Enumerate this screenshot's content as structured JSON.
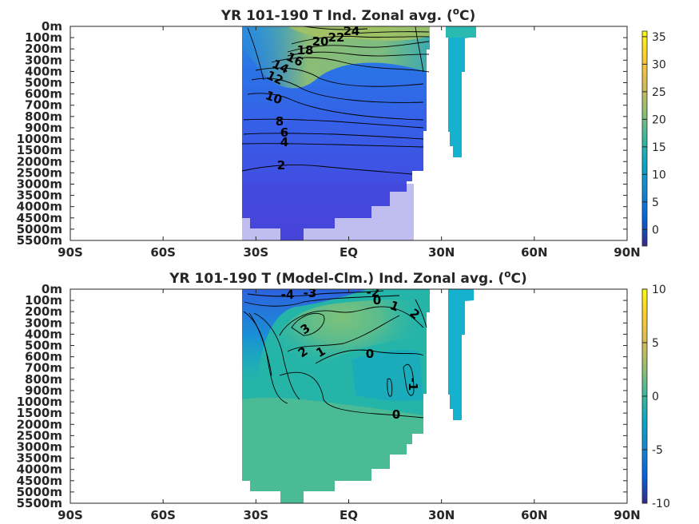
{
  "chart_data": [
    {
      "type": "heatmap",
      "title": "YR 101-190 T Ind. Zonal avg. (",
      "title_sup": "o",
      "title_end": "C)",
      "xlabel": "",
      "ylabel": "",
      "x_ticks": [
        "90S",
        "60S",
        "30S",
        "EQ",
        "30N",
        "60N",
        "90N"
      ],
      "y_ticks": [
        "0m",
        "100m",
        "200m",
        "300m",
        "400m",
        "500m",
        "600m",
        "700m",
        "800m",
        "900m",
        "1000m",
        "1500m",
        "2000m",
        "2500m",
        "3000m",
        "3500m",
        "4000m",
        "4500m",
        "5000m",
        "5500m"
      ],
      "colorbar_ticks": [
        "35",
        "30",
        "25",
        "20",
        "15",
        "10",
        "5",
        "0"
      ],
      "colorbar_range": [
        -3,
        36
      ],
      "contour_labels": [
        "24",
        "22",
        "20",
        "18",
        "16",
        "14",
        "12",
        "10",
        "8",
        "6",
        "4",
        "2"
      ],
      "colormap": "parula"
    },
    {
      "type": "heatmap",
      "title": "YR 101-190 T (Model-Clm.) Ind. Zonal avg. (",
      "title_sup": "o",
      "title_end": "C)",
      "xlabel": "",
      "ylabel": "",
      "x_ticks": [
        "90S",
        "60S",
        "30S",
        "EQ",
        "30N",
        "60N",
        "90N"
      ],
      "y_ticks": [
        "0m",
        "100m",
        "200m",
        "300m",
        "400m",
        "500m",
        "600m",
        "700m",
        "800m",
        "900m",
        "1000m",
        "1500m",
        "2000m",
        "2500m",
        "3000m",
        "3500m",
        "4000m",
        "4500m",
        "5000m",
        "5500m"
      ],
      "colorbar_ticks": [
        "10",
        "5",
        "0",
        "-5",
        "-10"
      ],
      "colorbar_range": [
        -10,
        10
      ],
      "contour_labels": [
        "-4",
        "-3",
        "-2",
        "0",
        "1",
        "2",
        "3",
        "2",
        "1",
        "0",
        "-1",
        "0"
      ],
      "colormap": "parula"
    }
  ]
}
